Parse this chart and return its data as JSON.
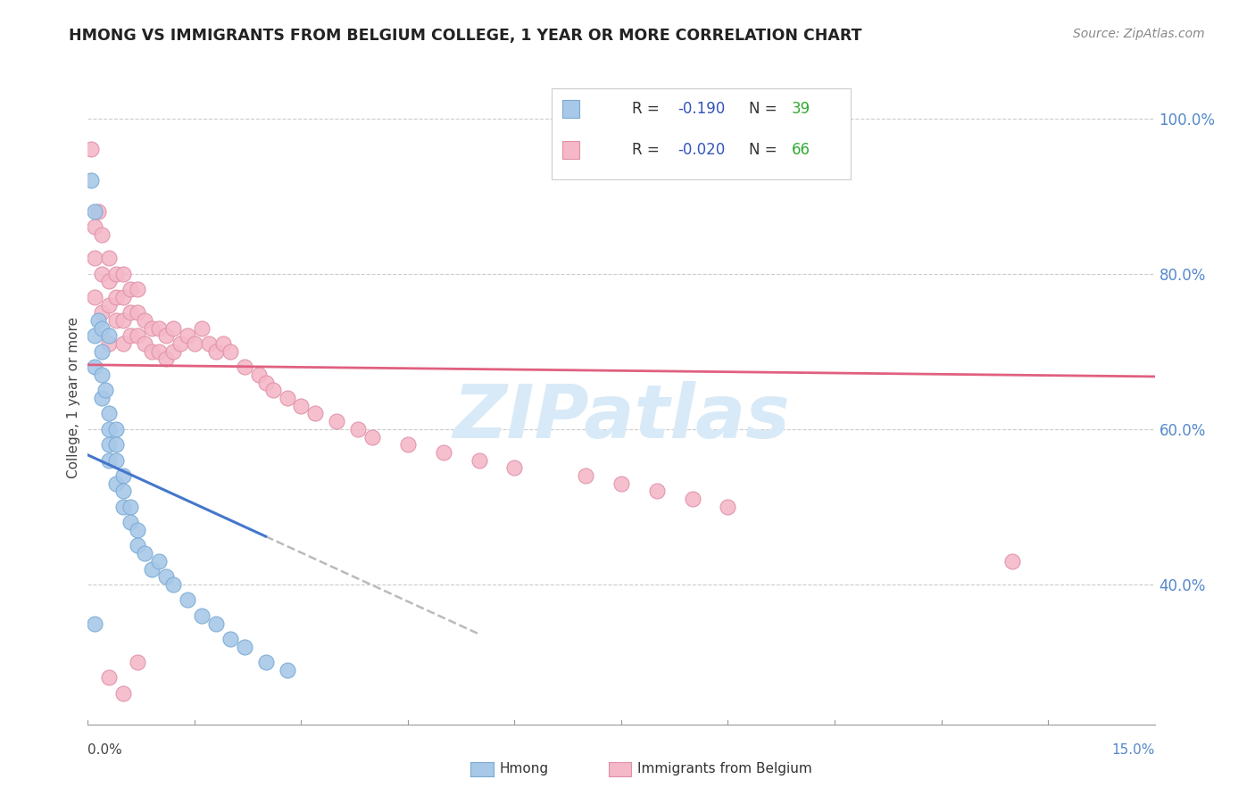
{
  "title": "HMONG VS IMMIGRANTS FROM BELGIUM COLLEGE, 1 YEAR OR MORE CORRELATION CHART",
  "source": "Source: ZipAtlas.com",
  "ylabel": "College, 1 year or more",
  "y_ticks": [
    0.4,
    0.6,
    0.8,
    1.0
  ],
  "y_tick_labels": [
    "40.0%",
    "60.0%",
    "80.0%",
    "100.0%"
  ],
  "xmin": 0.0,
  "xmax": 0.15,
  "ymin": 0.22,
  "ymax": 1.06,
  "hmong_color": "#a8c8e8",
  "hmong_edge": "#7aaad4",
  "belgium_color": "#f4b8c8",
  "belgium_edge": "#e090a8",
  "hmong_line_color": "#4477cc",
  "belgium_line_color": "#e06080",
  "dash_color": "#bbbbbb",
  "legend_box_color": "#f8f8f8",
  "legend_border_color": "#cccccc",
  "R_text_color": "#3355bb",
  "N_text_color": "#33aa33",
  "watermark_color": "#d8eaf8",
  "hmong_R": -0.19,
  "hmong_N": 39,
  "belgium_R": -0.02,
  "belgium_N": 66,
  "hmong_x": [
    0.0005,
    0.001,
    0.001,
    0.001,
    0.0015,
    0.002,
    0.002,
    0.002,
    0.002,
    0.0025,
    0.003,
    0.003,
    0.003,
    0.003,
    0.003,
    0.004,
    0.004,
    0.004,
    0.004,
    0.005,
    0.005,
    0.005,
    0.006,
    0.006,
    0.007,
    0.007,
    0.008,
    0.009,
    0.01,
    0.011,
    0.012,
    0.014,
    0.016,
    0.018,
    0.02,
    0.022,
    0.025,
    0.028,
    0.001
  ],
  "hmong_y": [
    0.92,
    0.88,
    0.72,
    0.68,
    0.74,
    0.73,
    0.7,
    0.67,
    0.64,
    0.65,
    0.62,
    0.6,
    0.58,
    0.56,
    0.72,
    0.6,
    0.58,
    0.56,
    0.53,
    0.54,
    0.52,
    0.5,
    0.5,
    0.48,
    0.47,
    0.45,
    0.44,
    0.42,
    0.43,
    0.41,
    0.4,
    0.38,
    0.36,
    0.35,
    0.33,
    0.32,
    0.3,
    0.29,
    0.35
  ],
  "belgium_x": [
    0.0005,
    0.001,
    0.001,
    0.001,
    0.0015,
    0.002,
    0.002,
    0.002,
    0.003,
    0.003,
    0.003,
    0.003,
    0.004,
    0.004,
    0.004,
    0.005,
    0.005,
    0.005,
    0.005,
    0.006,
    0.006,
    0.006,
    0.007,
    0.007,
    0.007,
    0.008,
    0.008,
    0.009,
    0.009,
    0.01,
    0.01,
    0.011,
    0.011,
    0.012,
    0.012,
    0.013,
    0.014,
    0.015,
    0.016,
    0.017,
    0.018,
    0.019,
    0.02,
    0.022,
    0.024,
    0.025,
    0.026,
    0.028,
    0.03,
    0.032,
    0.035,
    0.038,
    0.04,
    0.045,
    0.05,
    0.055,
    0.06,
    0.07,
    0.075,
    0.08,
    0.085,
    0.09,
    0.13,
    0.003,
    0.005,
    0.007
  ],
  "belgium_y": [
    0.96,
    0.86,
    0.82,
    0.77,
    0.88,
    0.85,
    0.8,
    0.75,
    0.82,
    0.79,
    0.76,
    0.71,
    0.8,
    0.77,
    0.74,
    0.8,
    0.77,
    0.74,
    0.71,
    0.78,
    0.75,
    0.72,
    0.78,
    0.75,
    0.72,
    0.74,
    0.71,
    0.73,
    0.7,
    0.73,
    0.7,
    0.72,
    0.69,
    0.73,
    0.7,
    0.71,
    0.72,
    0.71,
    0.73,
    0.71,
    0.7,
    0.71,
    0.7,
    0.68,
    0.67,
    0.66,
    0.65,
    0.64,
    0.63,
    0.62,
    0.61,
    0.6,
    0.59,
    0.58,
    0.57,
    0.56,
    0.55,
    0.54,
    0.53,
    0.52,
    0.51,
    0.5,
    0.43,
    0.28,
    0.26,
    0.3
  ]
}
